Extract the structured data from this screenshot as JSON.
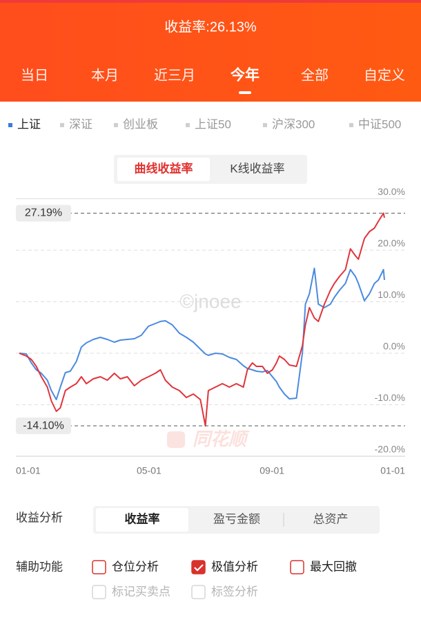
{
  "header": {
    "title": "收益率:26.13%",
    "tabs": [
      "当日",
      "本月",
      "近三月",
      "今年",
      "全部",
      "自定义"
    ],
    "active_tab": 3
  },
  "index_tabs": {
    "items": [
      "上证",
      "深证",
      "创业板",
      "上证50",
      "沪深300",
      "中证500"
    ],
    "active": 0
  },
  "mode_toggle": {
    "options": [
      "曲线收益率",
      "K线收益率"
    ],
    "active": 0
  },
  "chart_data": {
    "type": "line",
    "watermarks": [
      "©jnoee",
      "同花顺"
    ],
    "xlim": [
      0,
      365
    ],
    "xticks": [
      {
        "value": 0,
        "label": "01-01"
      },
      {
        "value": 120,
        "label": "05-01"
      },
      {
        "value": 243,
        "label": "09-01"
      },
      {
        "value": 365,
        "label": "01-01"
      }
    ],
    "ylim": [
      -20,
      30
    ],
    "yticks": [
      {
        "value": 30,
        "label": "30.0%"
      },
      {
        "value": 20,
        "label": "20.0%"
      },
      {
        "value": 10,
        "label": "10.0%"
      },
      {
        "value": 0,
        "label": "0.0%"
      },
      {
        "value": -10,
        "label": "-10.0%"
      },
      {
        "value": -20,
        "label": "-20.0%"
      }
    ],
    "grid": true,
    "annotations": [
      {
        "value": 27.19,
        "label": "27.19%"
      },
      {
        "value": -14.1,
        "label": "-14.10%"
      }
    ],
    "x": [
      0,
      7,
      12,
      17,
      22,
      28,
      32,
      37,
      41,
      46,
      51,
      57,
      62,
      67,
      74,
      81,
      88,
      95,
      101,
      108,
      115,
      122,
      129,
      136,
      141,
      146,
      153,
      160,
      167,
      174,
      181,
      186,
      189,
      196,
      203,
      210,
      217,
      224,
      228,
      233,
      237,
      243,
      248,
      253,
      257,
      260,
      265,
      270,
      277,
      283,
      286,
      290,
      295,
      299,
      305,
      311,
      315,
      320,
      326,
      331,
      336,
      339,
      345,
      350,
      355,
      359,
      364,
      365
    ],
    "series": [
      {
        "color": "#4a8ae0",
        "values": [
          0,
          -0.13,
          -1.88,
          -3.22,
          -3.89,
          -5.23,
          -7.25,
          -9.0,
          -6.58,
          -3.76,
          -3.49,
          -1.61,
          1.21,
          2.01,
          2.68,
          3.09,
          2.68,
          2.15,
          2.55,
          2.68,
          2.82,
          3.49,
          5.23,
          5.77,
          6.17,
          6.31,
          5.5,
          3.89,
          3.09,
          2.15,
          0.81,
          -0.13,
          -0.4,
          0,
          -0.13,
          -0.81,
          -1.21,
          -2.42,
          -2.95,
          -3.22,
          -3.49,
          -3.62,
          -3.36,
          -4.56,
          -5.5,
          -6.58,
          -7.92,
          -8.86,
          -8.72,
          0.13,
          9.53,
          11.54,
          16.5,
          9.53,
          8.86,
          9.53,
          10.87,
          12.21,
          13.56,
          16.24,
          14.9,
          13.56,
          10.2,
          11.54,
          13.56,
          14.23,
          16.24,
          14.23
        ]
      },
      {
        "color": "#e0343a",
        "values": [
          0,
          -0.54,
          -1.21,
          -2.55,
          -4.56,
          -6.58,
          -9.26,
          -11.28,
          -10.6,
          -7.25,
          -6.58,
          -5.91,
          -4.56,
          -5.91,
          -4.97,
          -4.56,
          -5.23,
          -3.89,
          -4.97,
          -4.56,
          -6.31,
          -5.23,
          -4.56,
          -3.89,
          -3.22,
          -5.23,
          -6.58,
          -7.25,
          -8.59,
          -7.92,
          -8.99,
          -14.1,
          -7.25,
          -6.58,
          -5.91,
          -6.58,
          -5.91,
          -6.58,
          -3.22,
          -1.88,
          -2.55,
          -2.55,
          -3.89,
          -3.22,
          -1.88,
          -0.54,
          -1.21,
          -2.28,
          -2.55,
          1.48,
          5.5,
          8.86,
          6.85,
          6.17,
          9.53,
          12.21,
          13.56,
          14.9,
          16.24,
          20.27,
          18.93,
          18.26,
          22.28,
          23.62,
          24.3,
          25.64,
          27.19,
          26.31
        ]
      }
    ]
  },
  "analysis": {
    "label": "收益分析",
    "options": [
      "收益率",
      "盈亏金额",
      "总资产"
    ],
    "active": 0
  },
  "aux": {
    "label": "辅助功能",
    "options": [
      {
        "label": "仓位分析",
        "checked": false,
        "disabled": false
      },
      {
        "label": "极值分析",
        "checked": true,
        "disabled": false
      },
      {
        "label": "最大回撤",
        "checked": false,
        "disabled": false
      },
      {
        "label": "标记买卖点",
        "checked": false,
        "disabled": true
      },
      {
        "label": "标签分析",
        "checked": false,
        "disabled": true
      }
    ]
  }
}
